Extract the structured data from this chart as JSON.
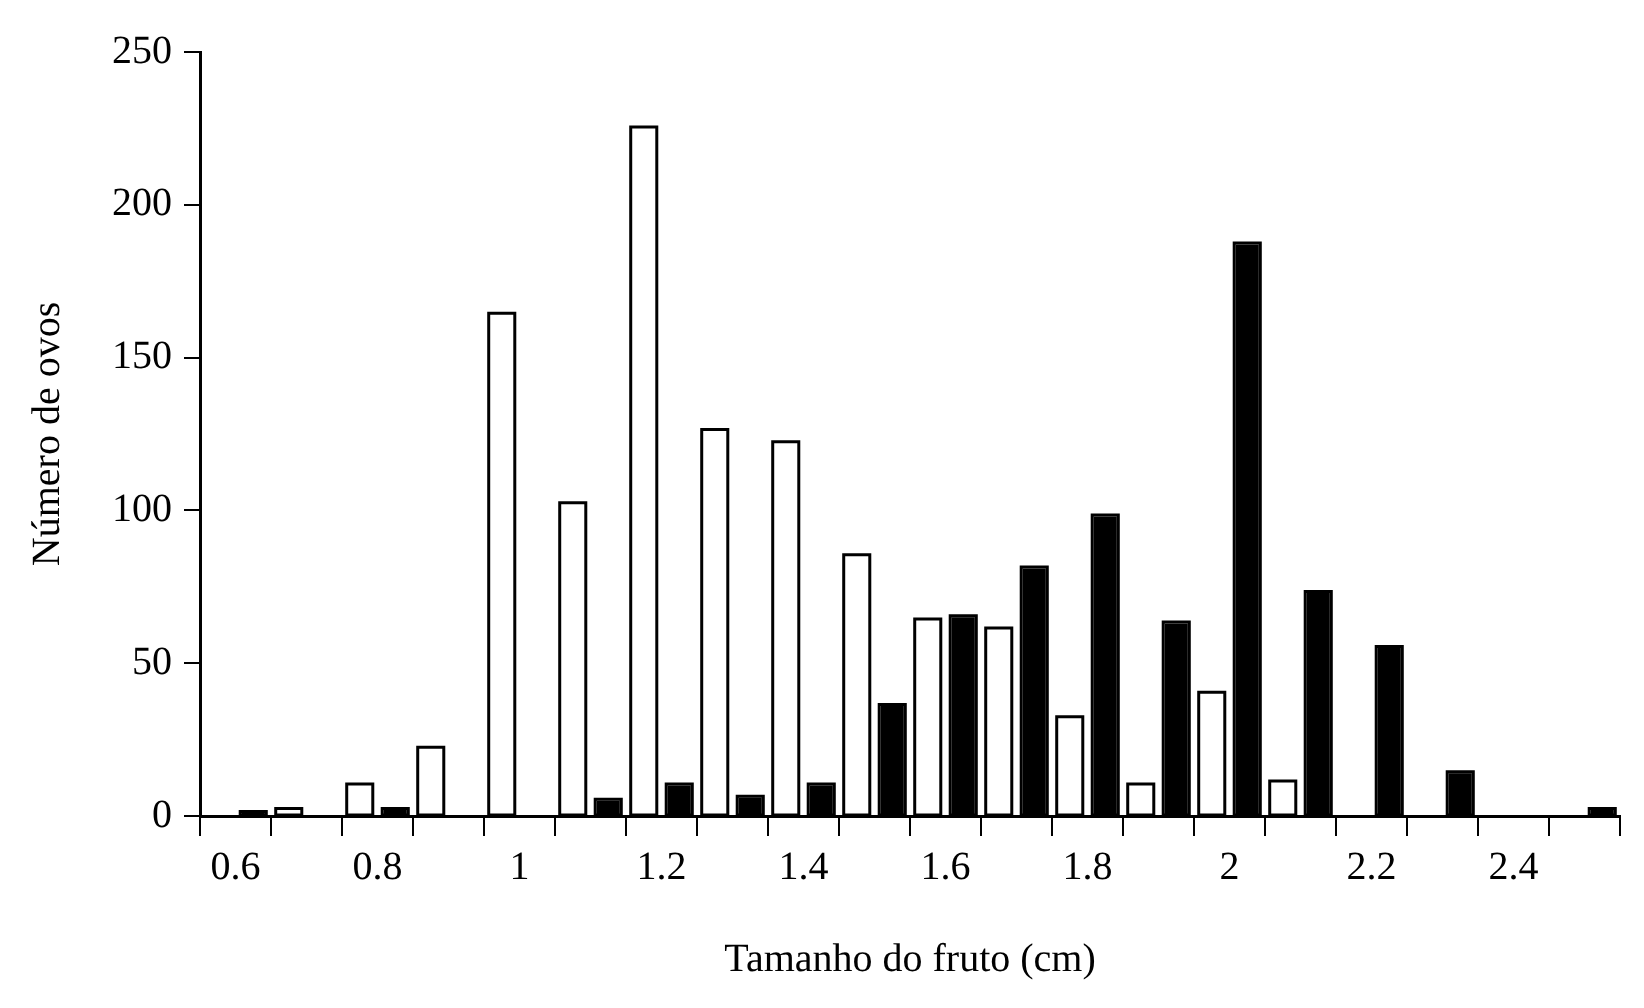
{
  "chart_data": {
    "type": "bar",
    "xlabel": "Tamanho do fruto (cm)",
    "ylabel": "Número de ovos",
    "categories": [
      "0.6",
      null,
      "0.8",
      null,
      "1",
      null,
      "1.2",
      null,
      "1.4",
      null,
      "1.6",
      null,
      "1.8",
      null,
      "2",
      null,
      "2.2",
      null,
      "2.4",
      null
    ],
    "series": [
      {
        "color": "#ffffff",
        "values": [
          0,
          2,
          10,
          22,
          164,
          102,
          225,
          126,
          122,
          85,
          64,
          61,
          32,
          10,
          40,
          11,
          0,
          0,
          0,
          0
        ]
      },
      {
        "color": "#000000",
        "values": [
          1,
          0,
          2,
          0,
          0,
          5,
          10,
          6,
          10,
          36,
          65,
          81,
          98,
          63,
          187,
          73,
          55,
          14,
          0,
          2
        ]
      }
    ],
    "ylim": [
      0,
      250
    ],
    "yticks": [
      0,
      50,
      100,
      150,
      200,
      250
    ],
    "grid": false,
    "legend": false
  }
}
